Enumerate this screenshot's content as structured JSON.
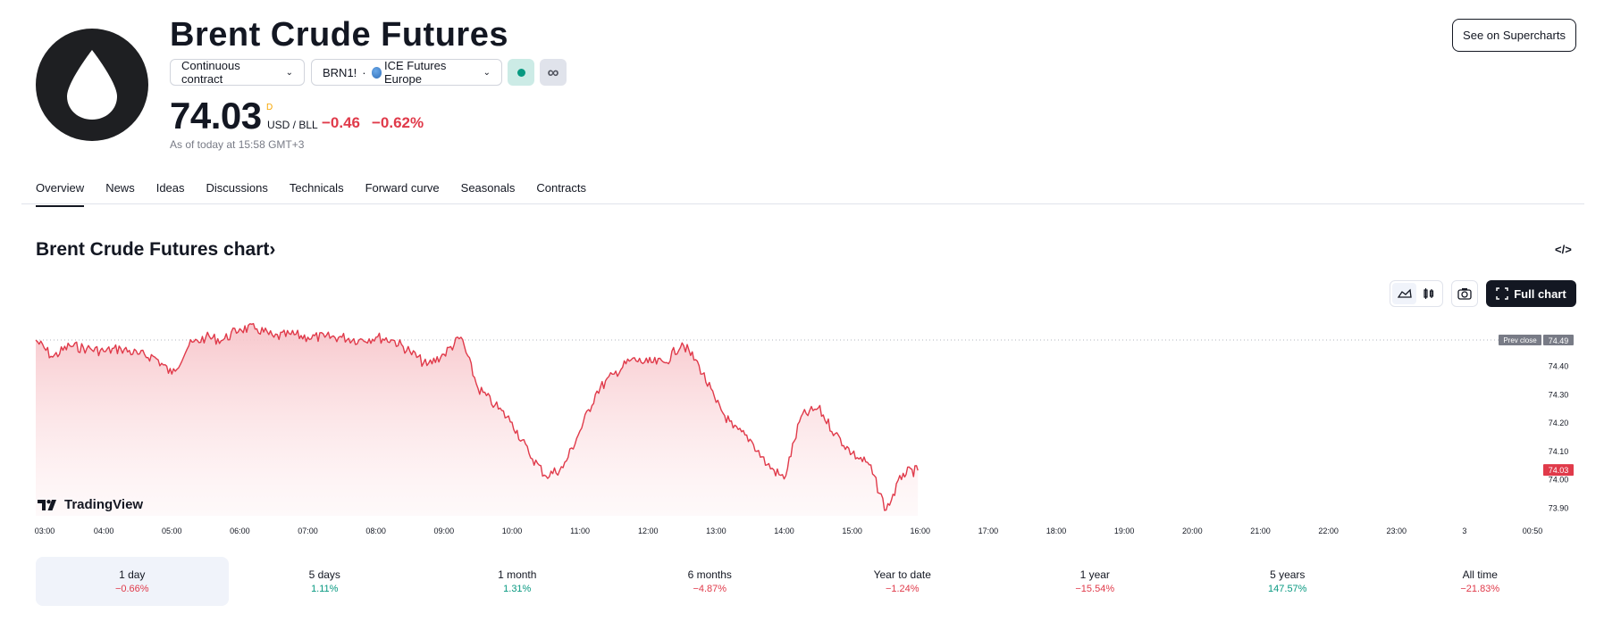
{
  "header": {
    "logo_icon": "oil-drop-icon",
    "title": "Brent Crude Futures",
    "contract_selector": "Continuous contract",
    "symbol": "BRN1!",
    "exchange": "ICE Futures Europe",
    "see_button": "See on Supercharts"
  },
  "quote": {
    "price": "74.03",
    "price_marker": "D",
    "currency": "USD / BLL",
    "change": "−0.46",
    "change_pct": "−0.62%",
    "as_of": "As of today at 15:58 GMT+3"
  },
  "tabs": [
    "Overview",
    "News",
    "Ideas",
    "Discussions",
    "Technicals",
    "Forward curve",
    "Seasonals",
    "Contracts"
  ],
  "chart_section": {
    "title": "Brent Crude Futures chart",
    "title_arrow": "›",
    "embed_icon": "</>",
    "full_chart_button": "Full chart",
    "prev_close_label": "Prev close",
    "prev_close_value": "74.49",
    "last_value_label": "74.03",
    "brand": "TradingView",
    "colors": {
      "line": "#e03a4a",
      "area_top": "#f7c4c9",
      "badge_gray": "#787b86",
      "badge_red": "#e03a4a"
    }
  },
  "chart_data": {
    "type": "area",
    "xlabel": "",
    "ylabel": "",
    "x_ticks": [
      "03:00",
      "04:00",
      "05:00",
      "06:00",
      "07:00",
      "08:00",
      "09:00",
      "10:00",
      "11:00",
      "12:00",
      "13:00",
      "14:00",
      "15:00",
      "16:00",
      "17:00",
      "18:00",
      "19:00",
      "20:00",
      "21:00",
      "22:00",
      "23:00",
      "3",
      "00:50"
    ],
    "y_ticks": [
      "74.40",
      "74.30",
      "74.20",
      "74.10",
      "74.00",
      "73.90"
    ],
    "ylim": [
      73.87,
      74.55
    ],
    "prev_close": 74.49,
    "series": [
      {
        "values_time": [
          "03:00",
          "03:15",
          "03:30",
          "03:45",
          "04:00",
          "04:15",
          "04:30",
          "04:45",
          "05:00",
          "05:15",
          "05:30",
          "05:45",
          "06:00",
          "06:15",
          "06:30",
          "06:45",
          "07:00",
          "07:15",
          "07:30",
          "07:45",
          "08:00",
          "08:15",
          "08:30",
          "08:45",
          "09:00",
          "09:15",
          "09:30",
          "09:45",
          "10:00",
          "10:15",
          "10:30",
          "10:45",
          "11:00",
          "11:15",
          "11:30",
          "11:45",
          "12:00",
          "12:15",
          "12:30",
          "12:45",
          "13:00",
          "13:15",
          "13:30",
          "13:45",
          "14:00",
          "14:15",
          "14:30",
          "14:45",
          "15:00",
          "15:15",
          "15:30",
          "15:45",
          "15:58"
        ],
        "values": [
          74.49,
          74.43,
          74.47,
          74.46,
          74.45,
          74.46,
          74.44,
          74.43,
          74.37,
          74.47,
          74.5,
          74.49,
          74.53,
          74.53,
          74.5,
          74.51,
          74.5,
          74.5,
          74.5,
          74.49,
          74.5,
          74.49,
          74.45,
          74.4,
          74.44,
          74.5,
          74.32,
          74.26,
          74.2,
          74.09,
          74.01,
          74.04,
          74.17,
          74.31,
          74.37,
          74.42,
          74.41,
          74.41,
          74.48,
          74.4,
          74.27,
          74.18,
          74.14,
          74.05,
          74.0,
          74.22,
          74.25,
          74.16,
          74.09,
          74.05,
          73.89,
          74.02,
          74.03
        ]
      }
    ]
  },
  "periods": [
    {
      "label": "1 day",
      "value": "−0.66%",
      "sign": "neg"
    },
    {
      "label": "5 days",
      "value": "1.11%",
      "sign": "pos"
    },
    {
      "label": "1 month",
      "value": "1.31%",
      "sign": "pos"
    },
    {
      "label": "6 months",
      "value": "−4.87%",
      "sign": "neg"
    },
    {
      "label": "Year to date",
      "value": "−1.24%",
      "sign": "neg"
    },
    {
      "label": "1 year",
      "value": "−15.54%",
      "sign": "neg"
    },
    {
      "label": "5 years",
      "value": "147.57%",
      "sign": "pos"
    },
    {
      "label": "All time",
      "value": "−21.83%",
      "sign": "neg"
    }
  ]
}
